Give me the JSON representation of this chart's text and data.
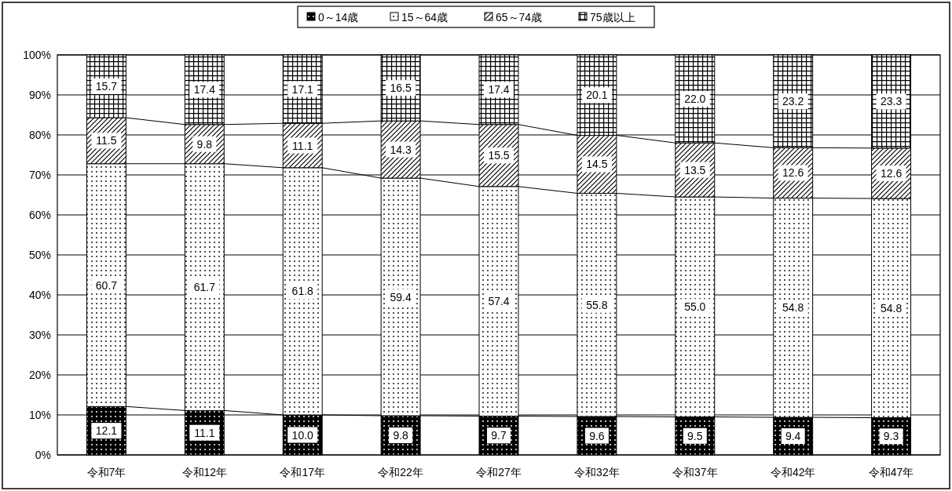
{
  "chart_data": {
    "type": "bar",
    "stacked": true,
    "categories": [
      "令和7年",
      "令和12年",
      "令和17年",
      "令和22年",
      "令和27年",
      "令和32年",
      "令和37年",
      "令和42年",
      "令和47年"
    ],
    "series": [
      {
        "name": "0～14歳",
        "color": "#000000",
        "values": [
          12.1,
          11.1,
          10.0,
          9.8,
          9.7,
          9.6,
          9.5,
          9.4,
          9.3
        ],
        "value_labels": [
          "12.1",
          "11.1",
          "10.0",
          "9.8",
          "9.7",
          "9.6",
          "9.5",
          "9.4",
          "9.3"
        ]
      },
      {
        "name": "15～64歳",
        "color": "#000000",
        "values": [
          60.7,
          61.7,
          61.8,
          59.4,
          57.4,
          55.8,
          55.0,
          54.8,
          54.8
        ],
        "value_labels": [
          "60.7",
          "61.7",
          "61.8",
          "59.4",
          "57.4",
          "55.8",
          "55.0",
          "54.8",
          "54.8"
        ]
      },
      {
        "name": "65～74歳",
        "color": "#000000",
        "values": [
          11.5,
          9.8,
          11.1,
          14.3,
          15.5,
          14.5,
          13.5,
          12.6,
          12.6
        ],
        "value_labels": [
          "11.5",
          "9.8",
          "11.1",
          "14.3",
          "15.5",
          "14.5",
          "13.5",
          "12.6",
          "12.6"
        ]
      },
      {
        "name": "75歳以上",
        "color": "#000000",
        "values": [
          15.7,
          17.4,
          17.1,
          16.5,
          17.4,
          20.1,
          22.0,
          23.2,
          23.3
        ],
        "value_labels": [
          "15.7",
          "17.4",
          "17.1",
          "16.5",
          "17.4",
          "20.1",
          "22.0",
          "23.2",
          "23.3"
        ]
      }
    ],
    "ylim": [
      0,
      100
    ],
    "yticks": [
      {
        "value": 0,
        "label": "0%"
      },
      {
        "value": 10,
        "label": "10%"
      },
      {
        "value": 20,
        "label": "20%"
      },
      {
        "value": 30,
        "label": "30%"
      },
      {
        "value": 40,
        "label": "40%"
      },
      {
        "value": 50,
        "label": "50%"
      },
      {
        "value": 60,
        "label": "60%"
      },
      {
        "value": 70,
        "label": "70%"
      },
      {
        "value": 80,
        "label": "80%"
      },
      {
        "value": 90,
        "label": "90%"
      },
      {
        "value": 100,
        "label": "100%"
      }
    ],
    "grid": "y",
    "legend": "top"
  }
}
